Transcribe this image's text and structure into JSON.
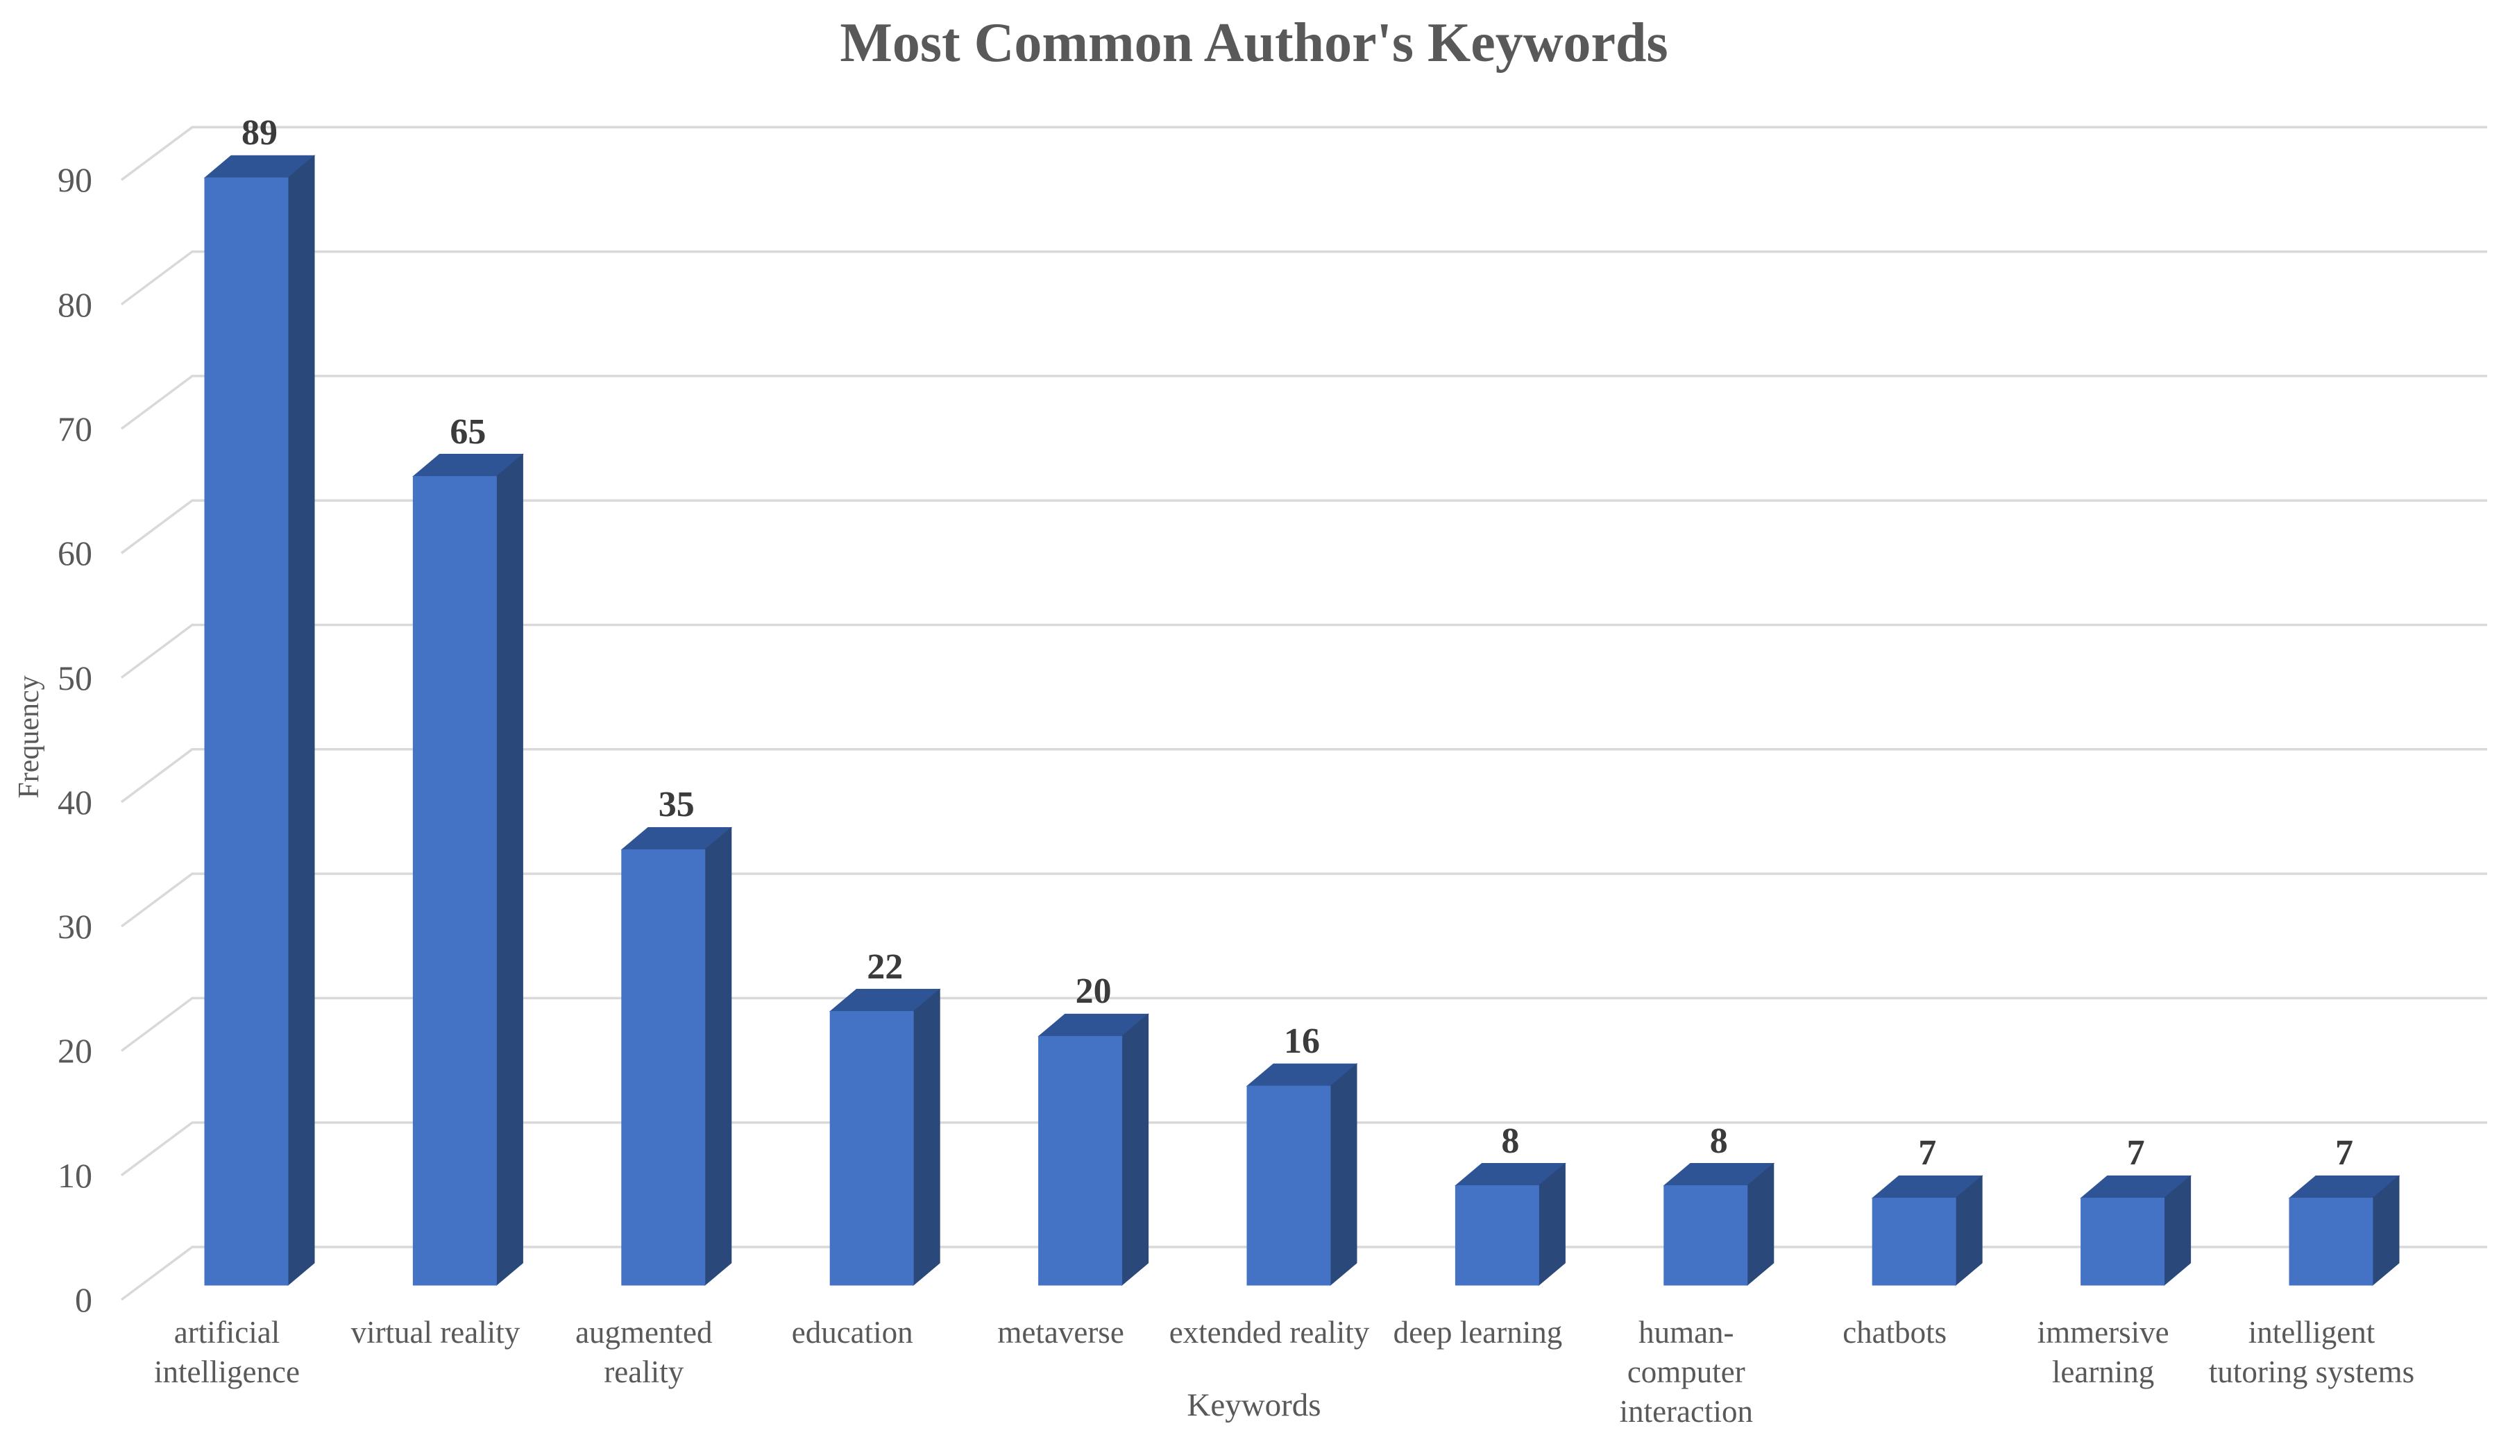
{
  "chart_data": {
    "type": "bar",
    "style": "3d-column",
    "title": "Most Common Author's Keywords",
    "xlabel": "Keywords",
    "ylabel": "Frequency",
    "categories": [
      "artificial intelligence",
      "virtual reality",
      "augmented reality",
      "education",
      "metaverse",
      "extended reality",
      "deep learning",
      "human-computer interaction",
      "chatbots",
      "immersive learning",
      "intelligent tutoring systems"
    ],
    "values": [
      89,
      65,
      35,
      22,
      20,
      16,
      8,
      8,
      7,
      7,
      7
    ],
    "yticks": [
      0,
      10,
      20,
      30,
      40,
      50,
      60,
      70,
      80,
      90
    ],
    "ylim": [
      0,
      90
    ],
    "grid": true,
    "data_labels": true,
    "legend": "none",
    "colors": {
      "bar_front": "#4472C4",
      "bar_top": "#2F5496",
      "bar_side": "#2A4879",
      "gridline": "#D9D9D9",
      "axis_text": "#595959",
      "data_label_text": "#3B3B3B",
      "title_text": "#595959",
      "background": "#FFFFFF"
    }
  }
}
